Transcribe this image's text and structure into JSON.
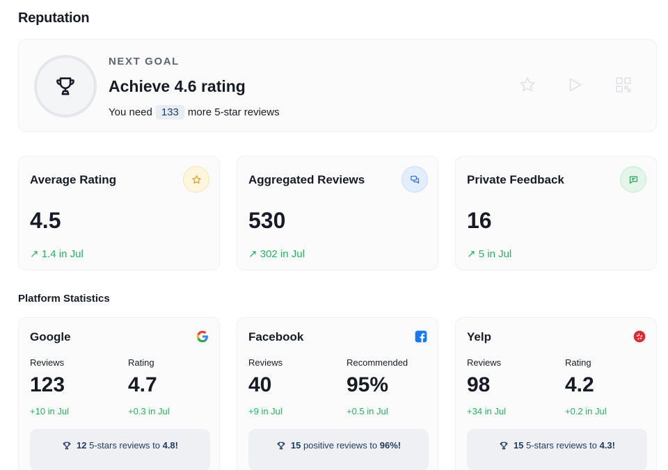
{
  "page": {
    "title": "Reputation"
  },
  "goal": {
    "label": "NEXT GOAL",
    "title": "Achieve 4.6 rating",
    "sub_prefix": "You need",
    "count": "133",
    "sub_suffix": "more 5-star reviews",
    "icon": "trophy-icon"
  },
  "stats": [
    {
      "title": "Average Rating",
      "value": "4.5",
      "trend": "↗ 1.4 in Jul",
      "icon": "star-icon",
      "icon_bg": "#fff6dd",
      "icon_color": "#e89a1a"
    },
    {
      "title": "Aggregated Reviews",
      "value": "530",
      "trend": "↗ 302 in Jul",
      "icon": "chat-bubbles-icon",
      "icon_bg": "#e3eefc",
      "icon_color": "#3b6fd4"
    },
    {
      "title": "Private Feedback",
      "value": "16",
      "trend": "↗ 5 in Jul",
      "icon": "message-icon",
      "icon_bg": "#e4f6ea",
      "icon_color": "#22a355"
    }
  ],
  "section": {
    "title": "Platform Statistics"
  },
  "platforms": [
    {
      "name": "Google",
      "logo": "google-logo",
      "m1_label": "Reviews",
      "m1_value": "123",
      "m1_delta": "+10 in Jul",
      "m2_label": "Rating",
      "m2_value": "4.7",
      "m2_delta": "+0.3 in Jul",
      "foot_count": "12",
      "foot_text": "5-stars reviews to",
      "foot_target": "4.8!"
    },
    {
      "name": "Facebook",
      "logo": "facebook-logo",
      "m1_label": "Reviews",
      "m1_value": "40",
      "m1_delta": "+9 in Jul",
      "m2_label": "Recommended",
      "m2_value": "95%",
      "m2_delta": "+0.5 in Jul",
      "foot_count": "15",
      "foot_text": "positive reviews to",
      "foot_target": "96%!"
    },
    {
      "name": "Yelp",
      "logo": "yelp-logo",
      "m1_label": "Reviews",
      "m1_value": "98",
      "m1_delta": "+34 in Jul",
      "m2_label": "Rating",
      "m2_value": "4.2",
      "m2_delta": "+0.2 in Jul",
      "foot_count": "15",
      "foot_text": "5-stars reviews to",
      "foot_target": "4.3!"
    }
  ],
  "colors": {
    "accent_green": "#22b35c",
    "text": "#161b26",
    "card_bg": "#fbfbfb"
  }
}
